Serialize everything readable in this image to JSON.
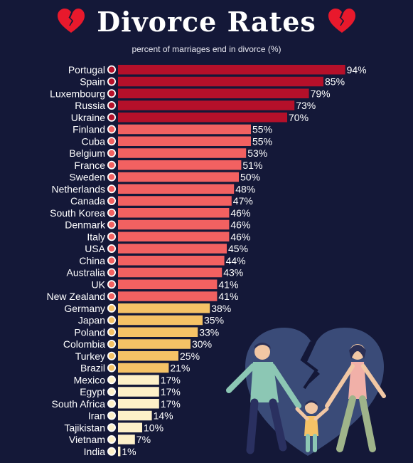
{
  "header": {
    "title": "Divorce Rates",
    "subtitle": "percent of marriages end in divorce (%)"
  },
  "colors": {
    "background": "#141838",
    "tier_top": "#b5102a",
    "tier_high": "#f26161",
    "tier_mid": "#f5c266",
    "tier_low": "#fdf0c8"
  },
  "chart_data": {
    "type": "bar",
    "orientation": "horizontal",
    "title": "Divorce Rates",
    "subtitle": "percent of marriages end in divorce (%)",
    "xlim": [
      0,
      100
    ],
    "grid": false,
    "categories": [
      "Portugal",
      "Spain",
      "Luxembourg",
      "Russia",
      "Ukraine",
      "Finland",
      "Cuba",
      "Belgium",
      "France",
      "Sweden",
      "Netherlands",
      "Canada",
      "South Korea",
      "Denmark",
      "Italy",
      "USA",
      "China",
      "Australia",
      "UK",
      "New Zealand",
      "Germany",
      "Japan",
      "Poland",
      "Colombia",
      "Turkey",
      "Brazil",
      "Mexico",
      "Egypt",
      "South Africa",
      "Iran",
      "Tajikistan",
      "Vietnam",
      "India"
    ],
    "values": [
      94,
      85,
      79,
      73,
      70,
      55,
      55,
      53,
      51,
      50,
      48,
      47,
      46,
      46,
      46,
      45,
      44,
      43,
      41,
      41,
      38,
      35,
      33,
      30,
      25,
      21,
      17,
      17,
      17,
      14,
      10,
      7,
      1
    ],
    "value_labels": [
      "94%",
      "85%",
      "79%",
      "73%",
      "70%",
      "55%",
      "55%",
      "53%",
      "51%",
      "50%",
      "48%",
      "47%",
      "46%",
      "46%",
      "46%",
      "45%",
      "44%",
      "43%",
      "41%",
      "41%",
      "38%",
      "35%",
      "33%",
      "30%",
      "25%",
      "21%",
      "17%",
      "17%",
      "17%",
      "14%",
      "10%",
      "7%",
      "1%"
    ],
    "bar_colors": [
      "#b5102a",
      "#b5102a",
      "#b5102a",
      "#b5102a",
      "#b5102a",
      "#f26161",
      "#f26161",
      "#f26161",
      "#f26161",
      "#f26161",
      "#f26161",
      "#f26161",
      "#f26161",
      "#f26161",
      "#f26161",
      "#f26161",
      "#f26161",
      "#f26161",
      "#f26161",
      "#f26161",
      "#f5c266",
      "#f5c266",
      "#f5c266",
      "#f5c266",
      "#f5c266",
      "#f5c266",
      "#fdf0c8",
      "#fdf0c8",
      "#fdf0c8",
      "#fdf0c8",
      "#fdf0c8",
      "#fdf0c8",
      "#fdf0c8"
    ]
  },
  "decor": {
    "title_icon": "broken-heart-icon",
    "illustration": "broken-heart-family-illustration",
    "flag_icon": "country-flag-icon"
  }
}
